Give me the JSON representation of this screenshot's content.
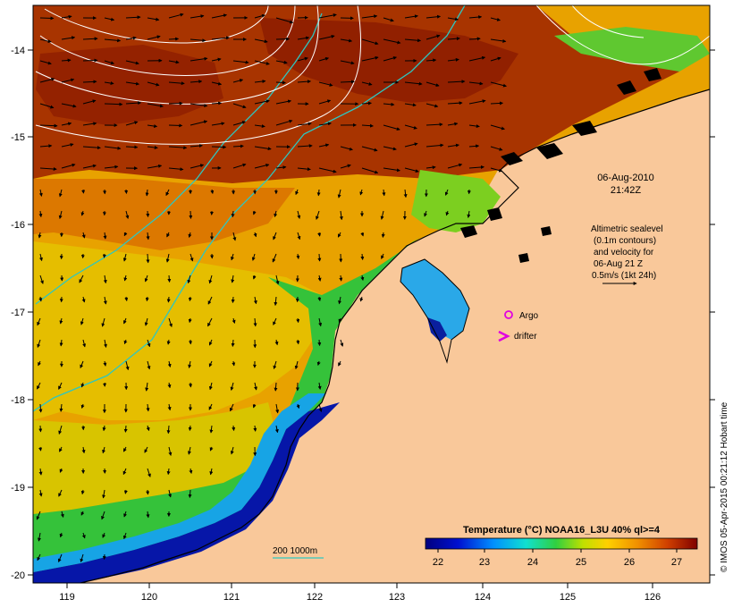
{
  "map": {
    "lon_ticks": [
      "119",
      "120",
      "121",
      "122",
      "123",
      "124",
      "125",
      "126"
    ],
    "lat_ticks": [
      "-14",
      "-15",
      "-16",
      "-17",
      "-18",
      "-19",
      "-20"
    ],
    "datetime_line1": "06-Aug-2010",
    "datetime_line2": "21:42Z",
    "altimetry_note": [
      "Altimetric sealevel",
      "(0.1m contours)",
      "and velocity for",
      "06-Aug 21 Z",
      "0.5m/s (1kt 24h)"
    ],
    "argo_label": "Argo",
    "drifter_label": "drifter",
    "depth_legend": "200  1000m",
    "colorbar_title": "Temperature (°C) NOAA16_L3U 40% ql>=4",
    "colorbar_ticks": [
      "22",
      "23",
      "24",
      "25",
      "26",
      "27"
    ],
    "credit": "© IMOS 05-Apr-2015 00:21:12 Hobart time"
  },
  "colors": {
    "land": "#f9c89a",
    "sea_warm": "#9e2a00",
    "sea_orange": "#e07f00",
    "sea_yellow": "#e7c300",
    "sea_green": "#2bbf35",
    "sea_blue": "#0011a6",
    "contour": "#ffffff",
    "isobath": "#2ec7c0",
    "argo": "#e000e0"
  }
}
